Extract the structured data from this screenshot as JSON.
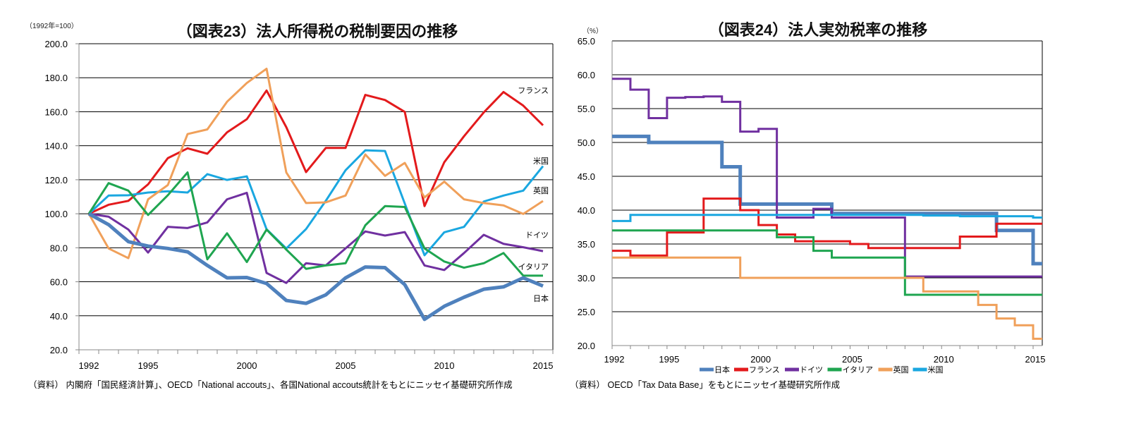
{
  "chart_data": [
    {
      "type": "line",
      "title": "（図表23）法人所得税の税制要因の推移",
      "unit_note": "（1992年=100）",
      "source": "（資料） 内閣府「国民経済計算」、OECD「National accouts」、各国National accouts統計をもとにニッセイ基礎研究所作成",
      "categories": [
        1992,
        1993,
        1994,
        1995,
        1996,
        1997,
        1998,
        1999,
        2000,
        2001,
        2002,
        2003,
        2004,
        2005,
        2006,
        2007,
        2008,
        2009,
        2010,
        2011,
        2012,
        2013,
        2014,
        2015
      ],
      "xtick_labels": [
        "1992",
        "1995",
        "2000",
        "2005",
        "2010",
        "2015"
      ],
      "ylim": [
        20,
        200
      ],
      "yticks": [
        "20.0",
        "40.0",
        "60.0",
        "80.0",
        "100.0",
        "120.0",
        "140.0",
        "160.0",
        "180.0",
        "200.0"
      ],
      "grid": true,
      "legend": "inline-right",
      "series": [
        {
          "name": "フランス",
          "color": "#e31a1c",
          "values": [
            100,
            105.3,
            107.6,
            117.3,
            132.7,
            138.5,
            135.3,
            147.9,
            155.6,
            172.5,
            150.9,
            124.5,
            138.7,
            138.7,
            169.9,
            166.9,
            159.9,
            104.5,
            130.3,
            145.6,
            159.6,
            171.6,
            163.6,
            152.0
          ]
        },
        {
          "name": "米国",
          "color": "#1aa7e0",
          "values": [
            100,
            110.7,
            110.9,
            112.5,
            113.2,
            112.5,
            123.3,
            119.9,
            122.0,
            90.9,
            79.6,
            91.0,
            107.6,
            125.6,
            137.3,
            136.9,
            106.0,
            75.6,
            89.1,
            92.3,
            107.2,
            110.7,
            113.6,
            128.0
          ]
        },
        {
          "name": "英国",
          "color": "#f0a05a",
          "values": [
            100,
            79.6,
            73.9,
            108.5,
            116.9,
            146.9,
            149.6,
            165.9,
            176.9,
            185.3,
            124.3,
            106.3,
            106.7,
            110.7,
            134.9,
            122.3,
            129.9,
            109.6,
            118.9,
            108.5,
            106.3,
            104.9,
            99.9,
            107.5
          ]
        },
        {
          "name": "ドイツ",
          "color": "#7030a0",
          "values": [
            100,
            98.3,
            90.7,
            77.2,
            92.3,
            91.6,
            94.9,
            108.5,
            112.3,
            65.2,
            59.3,
            70.9,
            69.6,
            79.6,
            89.6,
            87.2,
            89.2,
            69.6,
            66.9,
            76.9,
            87.6,
            82.3,
            80.3,
            78.0
          ]
        },
        {
          "name": "イタリア",
          "color": "#1fa550",
          "values": [
            100,
            118.0,
            113.6,
            99.3,
            110.9,
            124.3,
            73.2,
            88.5,
            71.6,
            90.7,
            78.9,
            67.6,
            69.6,
            70.9,
            93.2,
            104.5,
            104.0,
            79.6,
            71.9,
            68.3,
            70.9,
            76.9,
            63.6,
            63.6
          ]
        },
        {
          "name": "日本",
          "color": "#4f81bd",
          "values": [
            100,
            93.6,
            83.6,
            81.0,
            79.6,
            77.6,
            69.6,
            62.3,
            62.5,
            59.0,
            49.0,
            47.3,
            52.3,
            62.3,
            68.7,
            68.3,
            58.3,
            37.9,
            45.6,
            50.9,
            55.6,
            57.0,
            62.3,
            57.5
          ]
        }
      ]
    },
    {
      "type": "line",
      "step": true,
      "title": "（図表24）法人実効税率の推移",
      "unit_note": "（%）",
      "source": "（資料） OECD「Tax Data Base」をもとにニッセイ基礎研究所作成",
      "x": [
        1992,
        1993,
        1994,
        1995,
        1996,
        1997,
        1998,
        1999,
        2000,
        2001,
        2002,
        2003,
        2004,
        2005,
        2006,
        2007,
        2008,
        2009,
        2010,
        2011,
        2012,
        2013,
        2014,
        2015
      ],
      "xtick_labels": [
        "1992",
        "1995",
        "2000",
        "2005",
        "2010",
        "2015"
      ],
      "xlim": [
        1992,
        2015.5
      ],
      "ylim": [
        20,
        65
      ],
      "yticks": [
        "20.0",
        "25.0",
        "30.0",
        "35.0",
        "40.0",
        "45.0",
        "50.0",
        "55.0",
        "60.0",
        "65.0"
      ],
      "grid": true,
      "legend": "bottom",
      "series": [
        {
          "name": "日本",
          "color": "#4f81bd",
          "values": [
            50.9,
            50.9,
            50.0,
            50.0,
            50.0,
            50.0,
            46.4,
            40.9,
            40.9,
            40.9,
            40.9,
            40.9,
            39.5,
            39.5,
            39.5,
            39.5,
            39.5,
            39.5,
            39.5,
            39.5,
            39.5,
            37.0,
            37.0,
            32.1
          ]
        },
        {
          "name": "フランス",
          "color": "#e31a1c",
          "values": [
            34.0,
            33.3,
            33.3,
            36.7,
            36.7,
            41.7,
            41.7,
            40.0,
            37.8,
            36.4,
            35.4,
            35.4,
            35.4,
            35.0,
            34.4,
            34.4,
            34.4,
            34.4,
            34.4,
            36.1,
            36.1,
            38.0,
            38.0,
            38.0
          ]
        },
        {
          "name": "ドイツ",
          "color": "#7030a0",
          "values": [
            59.4,
            57.8,
            53.6,
            56.6,
            56.7,
            56.8,
            56.0,
            51.6,
            52.0,
            38.9,
            38.9,
            40.2,
            38.9,
            38.9,
            38.9,
            38.9,
            30.2,
            30.2,
            30.2,
            30.2,
            30.2,
            30.2,
            30.2,
            30.2
          ]
        },
        {
          "name": "イタリア",
          "color": "#1fa550",
          "values": [
            37.0,
            37.0,
            37.0,
            37.0,
            37.0,
            37.0,
            37.0,
            37.0,
            37.0,
            36.0,
            36.0,
            34.0,
            33.0,
            33.0,
            33.0,
            33.0,
            27.5,
            27.5,
            27.5,
            27.5,
            27.5,
            27.5,
            27.5,
            27.5
          ]
        },
        {
          "name": "英国",
          "color": "#f0a05a",
          "values": [
            33.0,
            33.0,
            33.0,
            33.0,
            33.0,
            33.0,
            33.0,
            30.0,
            30.0,
            30.0,
            30.0,
            30.0,
            30.0,
            30.0,
            30.0,
            30.0,
            30.0,
            28.0,
            28.0,
            28.0,
            26.0,
            24.0,
            23.0,
            21.0
          ]
        },
        {
          "name": "米国",
          "color": "#1aa7e0",
          "values": [
            38.4,
            39.3,
            39.3,
            39.3,
            39.3,
            39.3,
            39.3,
            39.3,
            39.3,
            39.3,
            39.3,
            39.3,
            39.3,
            39.3,
            39.3,
            39.3,
            39.3,
            39.2,
            39.2,
            39.1,
            39.1,
            39.1,
            39.1,
            38.9
          ]
        }
      ]
    }
  ]
}
